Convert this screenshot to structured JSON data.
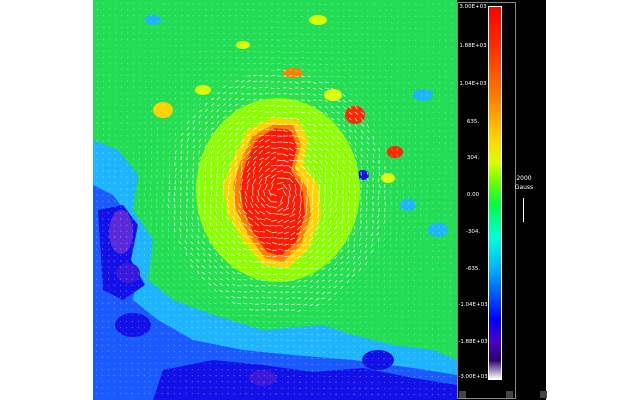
{
  "colorbar": {
    "tick_labels": [
      "3.00E+03",
      "1.88E+03",
      "1.04E+03",
      "635.",
      "304.",
      "0.00",
      "-304.",
      "-635.",
      "-1.04E+03",
      "-1.88E+03",
      "-3.00E+03"
    ],
    "range": [
      -3000,
      3000
    ],
    "colors": {
      "max": "#ff0000",
      "positive_mid": "#ffd800",
      "zero": "#00ff3c",
      "negative_mid": "#00b4ff",
      "strong_negative": "#0000ff",
      "min": "#ffffff"
    }
  },
  "scale": {
    "value": "2000",
    "unit": "Gauss"
  },
  "colors": {
    "background": "#1fe15a",
    "vectors": "#ffffff",
    "panel": "#000000"
  }
}
